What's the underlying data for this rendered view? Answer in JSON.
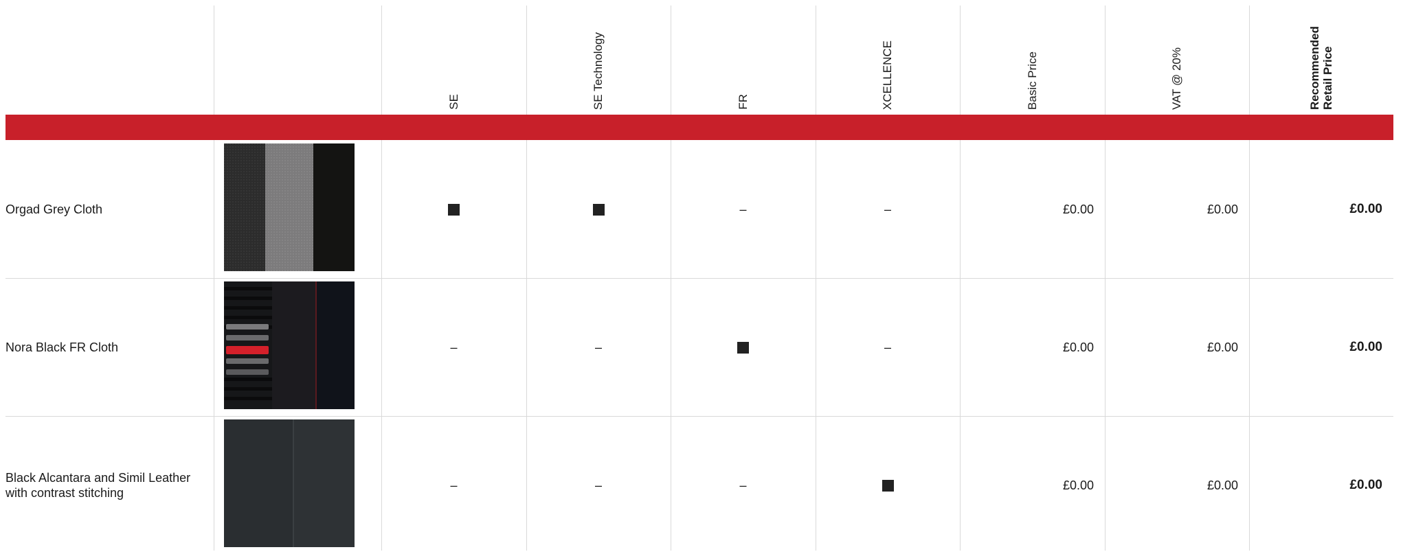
{
  "columns": [
    "SE",
    "SE Technology",
    "FR",
    "XCELLENCE",
    "Basic Price",
    "VAT @ 20%",
    "Recommended Retail Price"
  ],
  "rows": [
    {
      "label": "Orgad Grey Cloth",
      "swatch": "orgad-grey-cloth-swatch",
      "availability": [
        "■",
        "■",
        "–",
        "–"
      ],
      "basic_price": "£0.00",
      "vat": "£0.00",
      "rrp": "£0.00"
    },
    {
      "label": "Nora Black FR Cloth",
      "swatch": "nora-black-fr-cloth-swatch",
      "availability": [
        "–",
        "–",
        "■",
        "–"
      ],
      "basic_price": "£0.00",
      "vat": "£0.00",
      "rrp": "£0.00"
    },
    {
      "label": "Black Alcantara and Simil Leather with contrast stitching",
      "swatch": "black-alcantara-swatch",
      "availability": [
        "–",
        "–",
        "–",
        "■"
      ],
      "basic_price": "£0.00",
      "vat": "£0.00",
      "rrp": "£0.00"
    }
  ],
  "colors": {
    "accent_red": "#c8202a",
    "grid": "#d9d9d9",
    "mark": "#222222"
  }
}
